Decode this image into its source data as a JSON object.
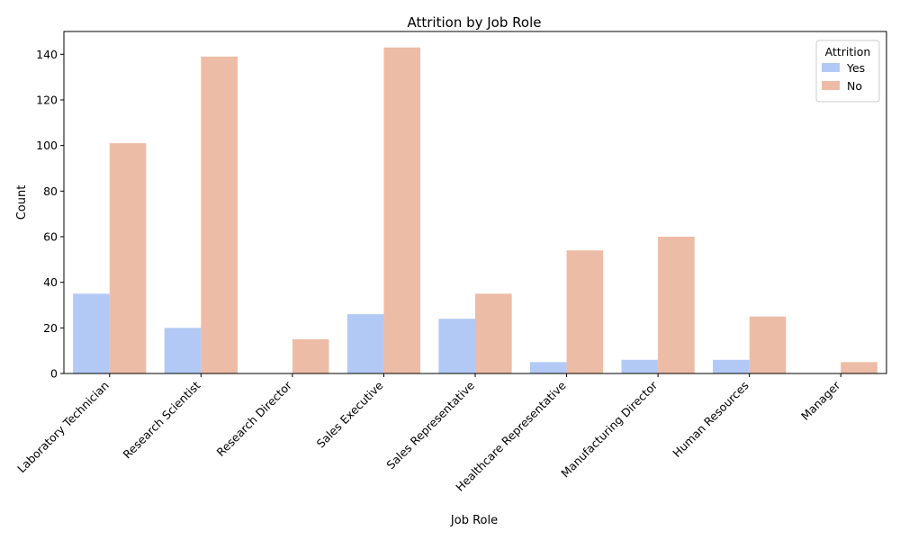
{
  "chart_data": {
    "type": "bar",
    "title": "Attrition by Job Role",
    "xlabel": "Job Role",
    "ylabel": "Count",
    "ylim": [
      0,
      150
    ],
    "yticks": [
      0,
      20,
      40,
      60,
      80,
      100,
      120,
      140
    ],
    "grid": false,
    "legend": {
      "title": "Attrition",
      "placement": "top-right"
    },
    "categories": [
      "Laboratory Technician",
      "Research Scientist",
      "Research Director",
      "Sales Executive",
      "Sales Representative",
      "Healthcare Representative",
      "Manufacturing Director",
      "Human Resources",
      "Manager"
    ],
    "series": [
      {
        "name": "Yes",
        "color": "#b2c9f5",
        "values": [
          35,
          20,
          0,
          26,
          24,
          5,
          6,
          6,
          0
        ]
      },
      {
        "name": "No",
        "color": "#edbca6",
        "values": [
          101,
          139,
          15,
          143,
          35,
          54,
          60,
          25,
          5
        ]
      }
    ]
  }
}
